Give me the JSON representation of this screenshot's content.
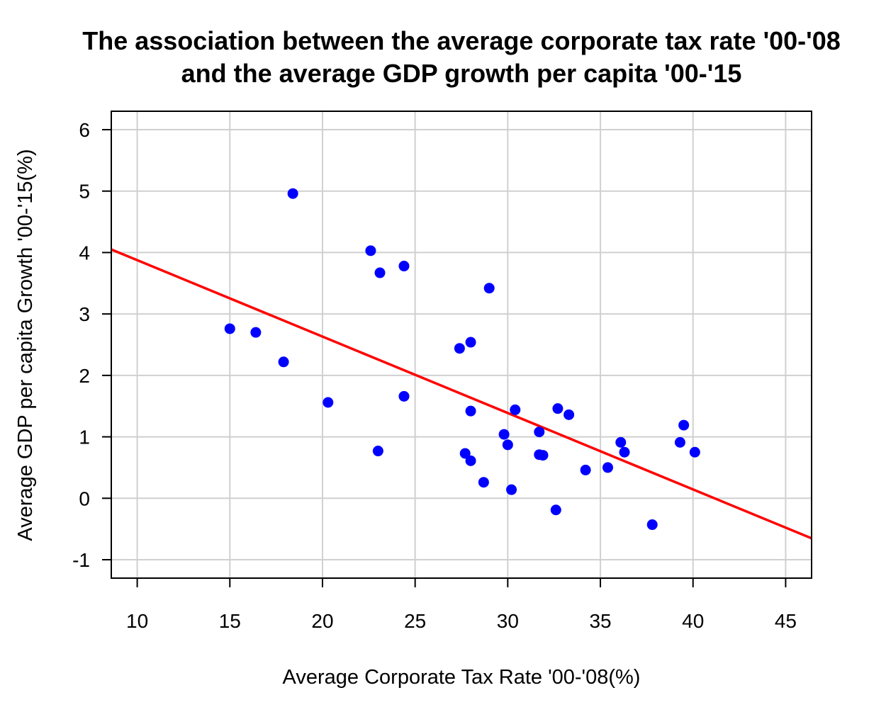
{
  "chart_data": {
    "type": "scatter",
    "title_lines": [
      "The association between the average corporate tax rate '00-'08",
      "and the average GDP growth per capita '00-'15"
    ],
    "xlabel": "Average Corporate Tax Rate '00-'08(%)",
    "ylabel": "Average GDP per capita Growth '00-'15(%)",
    "xlim": [
      8.6,
      46.4
    ],
    "ylim": [
      -1.3,
      6.3
    ],
    "x_ticks": [
      10,
      15,
      20,
      25,
      30,
      35,
      40,
      45
    ],
    "y_ticks": [
      -1,
      0,
      1,
      2,
      3,
      4,
      5,
      6
    ],
    "x_tick_labels": [
      "10",
      "15",
      "20",
      "25",
      "30",
      "35",
      "40",
      "45"
    ],
    "y_tick_labels": [
      "-1",
      "0",
      "1",
      "2",
      "3",
      "4",
      "5",
      "6"
    ],
    "grid": true,
    "point_color": "#0000ff",
    "line_color": "#ff0000",
    "points": [
      {
        "x": 15.0,
        "y": 2.76
      },
      {
        "x": 16.4,
        "y": 2.7
      },
      {
        "x": 17.9,
        "y": 2.22
      },
      {
        "x": 18.4,
        "y": 4.96
      },
      {
        "x": 20.3,
        "y": 1.56
      },
      {
        "x": 22.6,
        "y": 4.03
      },
      {
        "x": 23.0,
        "y": 0.77
      },
      {
        "x": 23.1,
        "y": 3.67
      },
      {
        "x": 24.4,
        "y": 3.78
      },
      {
        "x": 24.4,
        "y": 1.66
      },
      {
        "x": 27.4,
        "y": 2.44
      },
      {
        "x": 27.7,
        "y": 0.73
      },
      {
        "x": 28.0,
        "y": 2.54
      },
      {
        "x": 28.0,
        "y": 1.42
      },
      {
        "x": 28.0,
        "y": 0.61
      },
      {
        "x": 28.7,
        "y": 0.26
      },
      {
        "x": 29.0,
        "y": 3.42
      },
      {
        "x": 29.8,
        "y": 1.04
      },
      {
        "x": 30.0,
        "y": 0.87
      },
      {
        "x": 30.2,
        "y": 0.14
      },
      {
        "x": 30.4,
        "y": 1.44
      },
      {
        "x": 31.7,
        "y": 1.08
      },
      {
        "x": 31.7,
        "y": 0.71
      },
      {
        "x": 31.9,
        "y": 0.7
      },
      {
        "x": 32.6,
        "y": -0.19
      },
      {
        "x": 32.7,
        "y": 1.46
      },
      {
        "x": 33.3,
        "y": 1.36
      },
      {
        "x": 34.2,
        "y": 0.46
      },
      {
        "x": 35.4,
        "y": 0.5
      },
      {
        "x": 36.1,
        "y": 0.91
      },
      {
        "x": 36.3,
        "y": 0.75
      },
      {
        "x": 37.8,
        "y": -0.43
      },
      {
        "x": 39.3,
        "y": 0.91
      },
      {
        "x": 39.5,
        "y": 1.19
      },
      {
        "x": 40.1,
        "y": 0.75
      }
    ],
    "regression": {
      "intercept": 5.12,
      "slope": -0.1244
    }
  }
}
